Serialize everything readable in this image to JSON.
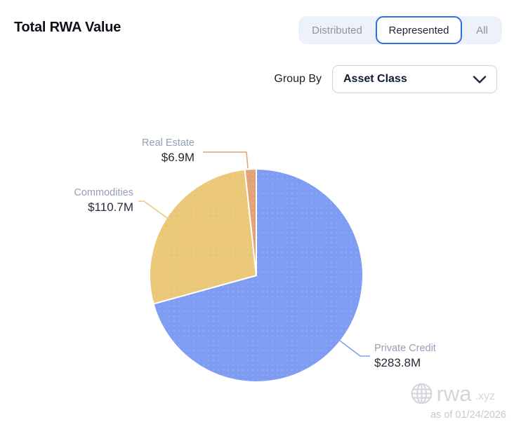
{
  "header": {
    "title": "Total RWA Value"
  },
  "view_toggle": {
    "active_border_color": "#2d6ee3",
    "options": [
      {
        "label": "Distributed",
        "active": false
      },
      {
        "label": "Represented",
        "active": true
      },
      {
        "label": "All",
        "active": false
      }
    ]
  },
  "group_by": {
    "label": "Group By",
    "selected": "Asset Class"
  },
  "chart_data": {
    "type": "pie",
    "title": "Total RWA Value",
    "grouping": "Asset Class",
    "start_angle_deg": 0,
    "direction": "clockwise",
    "unit": "USD millions",
    "slices": [
      {
        "label": "Private Credit",
        "value": 283.8,
        "value_text": "$283.8M",
        "percent": 70.7,
        "color": "#7e9df2"
      },
      {
        "label": "Commodities",
        "value": 110.7,
        "value_text": "$110.7M",
        "percent": 27.6,
        "color": "#eac877"
      },
      {
        "label": "Real Estate",
        "value": 6.9,
        "value_text": "$6.9M",
        "percent": 1.7,
        "color": "#e2a378"
      }
    ]
  },
  "watermark": {
    "brand": "rwa",
    "tld": ".xyz",
    "as_of": "as of 01/24/2026"
  }
}
